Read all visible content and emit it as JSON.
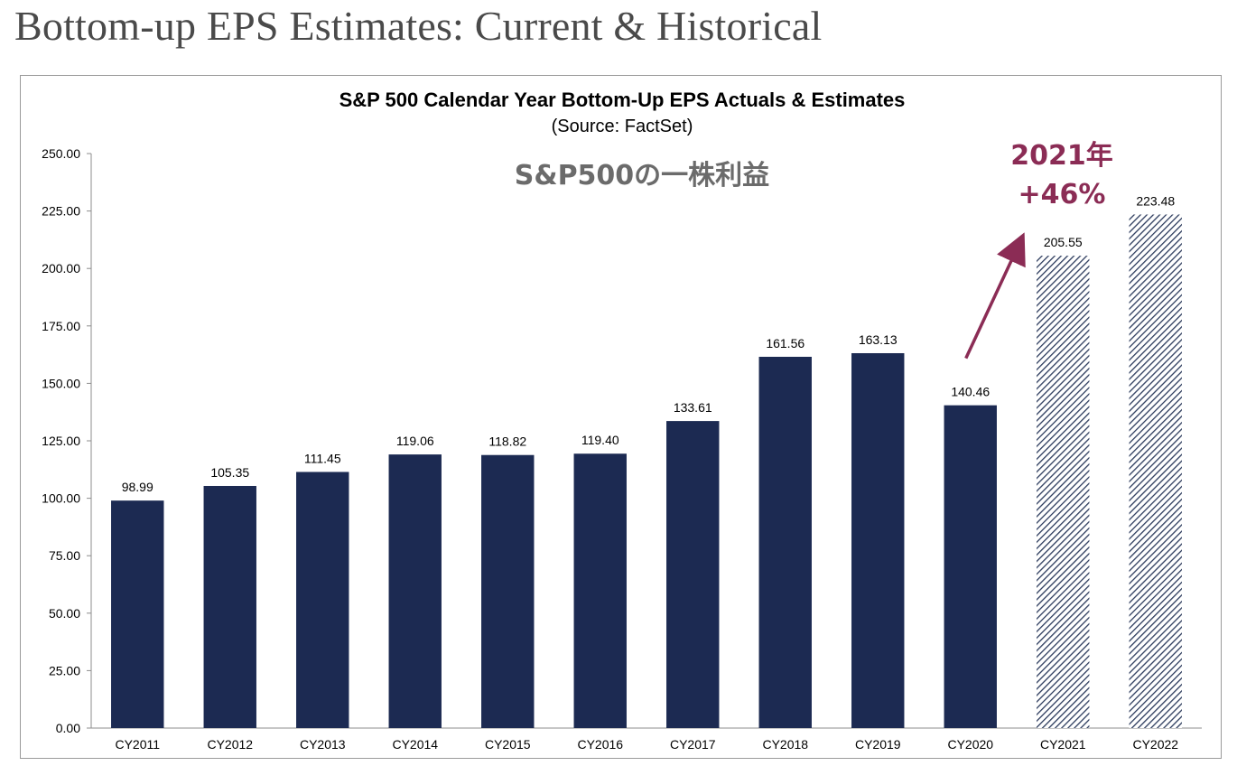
{
  "page": {
    "title": "Bottom-up EPS Estimates: Current & Historical"
  },
  "chart_data": {
    "type": "bar",
    "title": "S&P 500 Calendar Year Bottom-Up EPS Actuals & Estimates",
    "subtitle": "(Source: FactSet)",
    "overlay_label": "S&P500の一株利益",
    "annotation": {
      "line1": "2021年",
      "line2": "+46%",
      "from": "CY2020",
      "to": "CY2021"
    },
    "categories": [
      "CY2011",
      "CY2012",
      "CY2013",
      "CY2014",
      "CY2015",
      "CY2016",
      "CY2017",
      "CY2018",
      "CY2019",
      "CY2020",
      "CY2021",
      "CY2022"
    ],
    "values": [
      98.99,
      105.35,
      111.45,
      119.06,
      118.82,
      119.4,
      133.61,
      161.56,
      163.13,
      140.46,
      205.55,
      223.48
    ],
    "data_labels": [
      "98.99",
      "105.35",
      "111.45",
      "119.06",
      "118.82",
      "119.40",
      "133.61",
      "161.56",
      "163.13",
      "140.46",
      "205.55",
      "223.48"
    ],
    "estimate": [
      false,
      false,
      false,
      false,
      false,
      false,
      false,
      false,
      false,
      false,
      true,
      true
    ],
    "ylim": [
      0,
      250
    ],
    "yticks": [
      "0.00",
      "25.00",
      "50.00",
      "75.00",
      "100.00",
      "125.00",
      "150.00",
      "175.00",
      "200.00",
      "225.00",
      "250.00"
    ],
    "xlabel": "",
    "ylabel": "",
    "grid": false,
    "colors": {
      "actual": "#1c2a52",
      "estimate_hatch": "#2b3a5c",
      "annotation": "#8b2c55",
      "overlay": "#6b6b6b"
    }
  }
}
